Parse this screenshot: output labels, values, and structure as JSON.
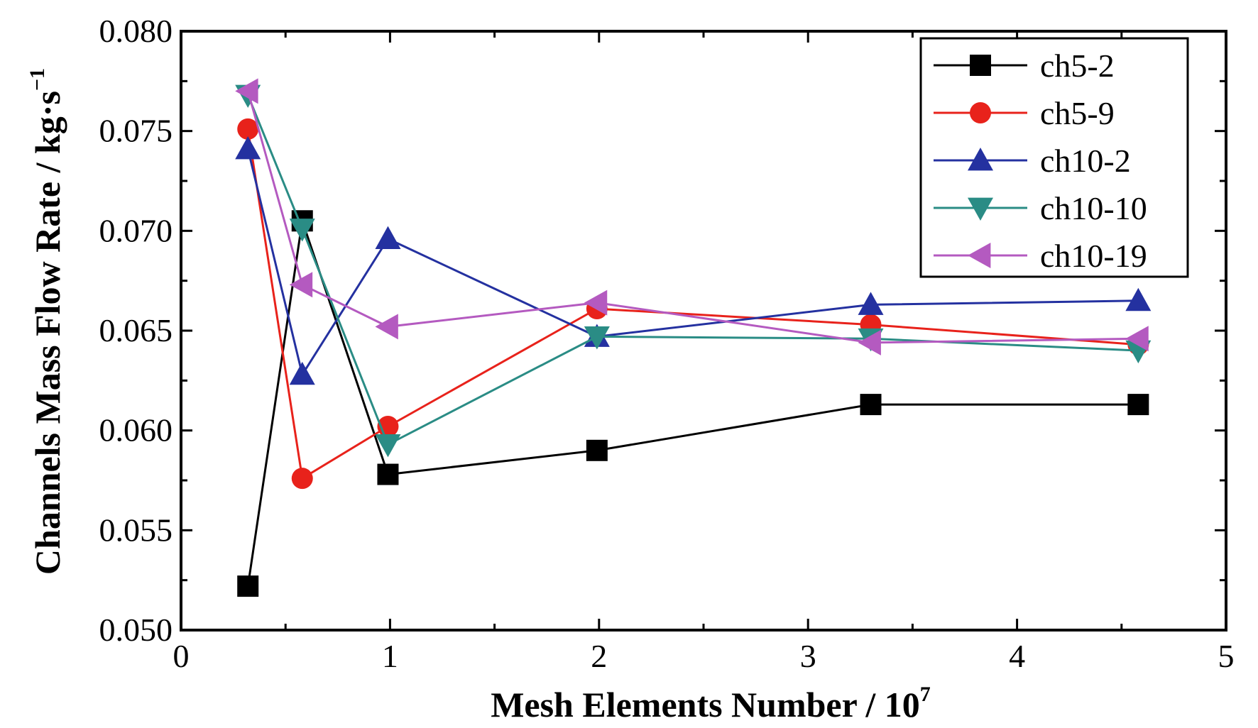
{
  "chart_data": {
    "type": "line",
    "xlabel": "Mesh Elements Number / 10",
    "xlabel_sup": "7",
    "ylabel": "Channels Mass Flow Rate / kg·s",
    "ylabel_sup": "−1",
    "xlim": [
      0,
      5
    ],
    "ylim": [
      0.05,
      0.08
    ],
    "x_ticks": [
      "0",
      "1",
      "2",
      "3",
      "4",
      "5"
    ],
    "y_ticks": [
      "0.050",
      "0.055",
      "0.060",
      "0.065",
      "0.070",
      "0.075",
      "0.080"
    ],
    "grid": false,
    "legend_position": "top-right",
    "x": [
      0.32,
      0.58,
      0.99,
      1.99,
      3.3,
      4.58
    ],
    "series": [
      {
        "name": "ch5-2",
        "color": "#000000",
        "marker": "square",
        "values": [
          0.0522,
          0.0705,
          0.0578,
          0.059,
          0.0613,
          0.0613
        ]
      },
      {
        "name": "ch5-9",
        "color": "#e8221b",
        "marker": "circle",
        "values": [
          0.0751,
          0.0576,
          0.0602,
          0.0661,
          0.0653,
          0.0643
        ]
      },
      {
        "name": "ch10-2",
        "color": "#2431a0",
        "marker": "triangle-up",
        "values": [
          0.0741,
          0.0628,
          0.0696,
          0.0647,
          0.0663,
          0.0665
        ]
      },
      {
        "name": "ch10-10",
        "color": "#2a8c85",
        "marker": "triangle-down",
        "values": [
          0.0768,
          0.0701,
          0.0593,
          0.0647,
          0.0646,
          0.064
        ]
      },
      {
        "name": "ch10-19",
        "color": "#b45ac0",
        "marker": "triangle-left",
        "values": [
          0.077,
          0.0673,
          0.0652,
          0.0664,
          0.0644,
          0.0646
        ]
      }
    ]
  }
}
